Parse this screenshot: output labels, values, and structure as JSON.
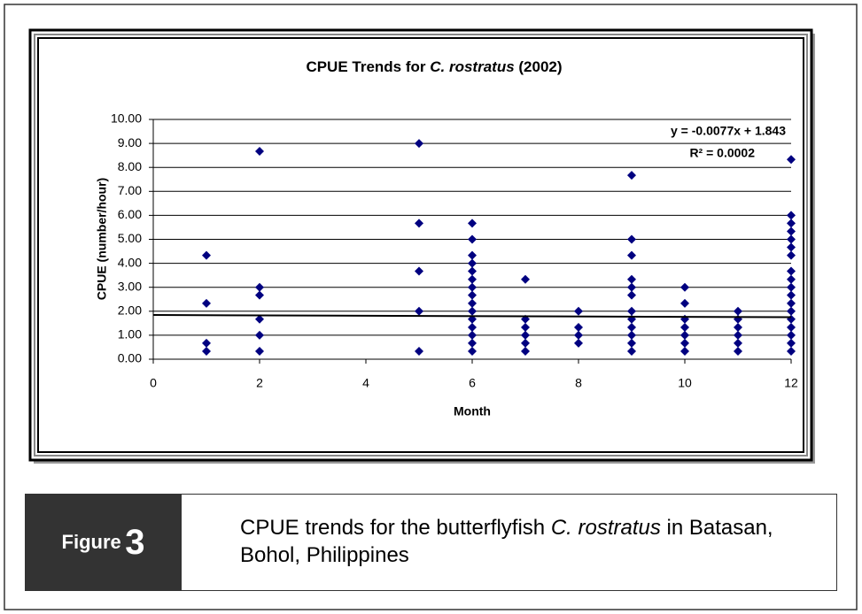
{
  "chart_data": {
    "type": "scatter",
    "title": [
      "CPUE Trends for ",
      "C. rostratus",
      "  (2002)"
    ],
    "xlabel": "Month",
    "ylabel": "CPUE (number/hour)",
    "color": "#000080",
    "x": [
      1,
      1,
      1,
      1,
      2,
      2,
      2,
      2,
      2,
      2,
      5,
      5,
      5,
      5,
      5,
      6,
      6,
      6,
      6,
      6,
      6,
      6,
      6,
      6,
      6,
      6,
      6,
      6,
      6,
      6,
      7,
      7,
      7,
      7,
      7,
      7,
      8,
      8,
      8,
      8,
      9,
      9,
      9,
      9,
      9,
      9,
      9,
      9,
      9,
      9,
      9,
      9,
      10,
      10,
      10,
      10,
      10,
      10,
      10,
      11,
      11,
      11,
      11,
      11,
      11,
      12,
      12,
      12,
      12,
      12,
      12,
      12,
      12,
      12,
      12,
      12,
      12,
      12,
      12,
      12,
      12,
      12,
      12
    ],
    "values": [
      0.33,
      0.67,
      2.33,
      4.33,
      0.33,
      1.0,
      1.67,
      2.67,
      3.0,
      8.67,
      0.33,
      2.0,
      3.67,
      5.67,
      9.0,
      0.33,
      0.67,
      1.0,
      1.33,
      1.67,
      2.0,
      2.33,
      2.67,
      3.0,
      3.33,
      3.67,
      4.0,
      4.33,
      5.0,
      5.67,
      0.33,
      0.67,
      1.0,
      1.33,
      1.67,
      3.33,
      0.67,
      1.0,
      1.33,
      2.0,
      0.33,
      0.67,
      1.0,
      1.33,
      1.67,
      2.0,
      2.67,
      3.0,
      3.33,
      4.33,
      5.0,
      7.67,
      0.33,
      0.67,
      1.0,
      1.33,
      1.67,
      2.33,
      3.0,
      0.33,
      0.67,
      1.0,
      1.33,
      1.67,
      2.0,
      0.33,
      0.67,
      1.0,
      1.33,
      1.67,
      2.0,
      2.33,
      2.67,
      3.0,
      3.33,
      3.67,
      4.33,
      4.67,
      5.0,
      5.33,
      5.67,
      6.0,
      8.33
    ],
    "xlim": [
      0,
      12
    ],
    "xticks": [
      0,
      2,
      4,
      6,
      8,
      10,
      12
    ],
    "ylim": [
      0,
      10
    ],
    "yticks": [
      {
        "value": 0,
        "label": "0.00"
      },
      {
        "value": 1,
        "label": "1.00"
      },
      {
        "value": 2,
        "label": "2.00"
      },
      {
        "value": 3,
        "label": "3.00"
      },
      {
        "value": 4,
        "label": "4.00"
      },
      {
        "value": 5,
        "label": "5.00"
      },
      {
        "value": 6,
        "label": "6.00"
      },
      {
        "value": 7,
        "label": "7.00"
      },
      {
        "value": 8,
        "label": "8.00"
      },
      {
        "value": 9,
        "label": "9.00"
      },
      {
        "value": 10,
        "label": "10.00"
      }
    ],
    "grid": true,
    "trendline": {
      "slope": -0.0077,
      "intercept": 1.843,
      "equation": "y = -0.0077x + 1.843",
      "r2": "R² = 0.0002"
    }
  },
  "caption": {
    "figure_word": "Figure",
    "figure_number": "3",
    "text": [
      "CPUE trends for the butterflyfish ",
      "C. rostratus",
      " in Batasan, Bohol, Philippines"
    ]
  }
}
